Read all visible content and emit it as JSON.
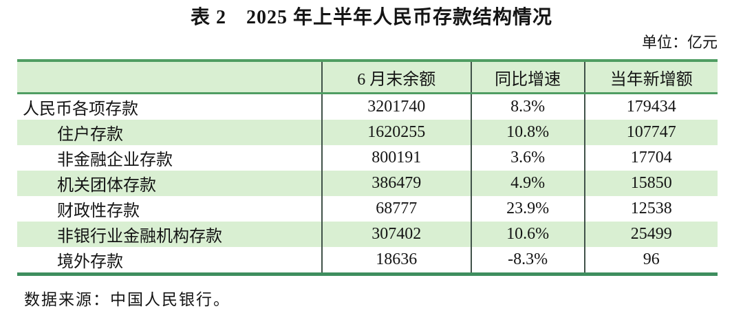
{
  "title": "表 2　2025 年上半年人民币存款结构情况",
  "unit_label": "单位：亿元",
  "source": "数据来源：中国人民银行。",
  "colors": {
    "green_border": "#4f9d62",
    "green_border_dark": "#3e8e5e",
    "light_green": "#d9efd2",
    "dark_line": "#3f5148",
    "text_color": "#141414"
  },
  "table": {
    "columns": [
      "",
      "6 月末余额",
      "同比增速",
      "当年新增额"
    ],
    "rows": [
      {
        "label": "人民币各项存款",
        "balance": "3201740",
        "growth": "8.3%",
        "increase": "179434"
      },
      {
        "label": "住户存款",
        "balance": "1620255",
        "growth": "10.8%",
        "increase": "107747"
      },
      {
        "label": "非金融企业存款",
        "balance": "800191",
        "growth": "3.6%",
        "increase": "17704"
      },
      {
        "label": "机关团体存款",
        "balance": "386479",
        "growth": "4.9%",
        "increase": "15850"
      },
      {
        "label": "财政性存款",
        "balance": "68777",
        "growth": "23.9%",
        "increase": "12538"
      },
      {
        "label": "非银行业金融机构存款",
        "balance": "307402",
        "growth": "10.6%",
        "increase": "25499"
      },
      {
        "label": "境外存款",
        "balance": "18636",
        "growth": "-8.3%",
        "increase": "96"
      }
    ]
  }
}
